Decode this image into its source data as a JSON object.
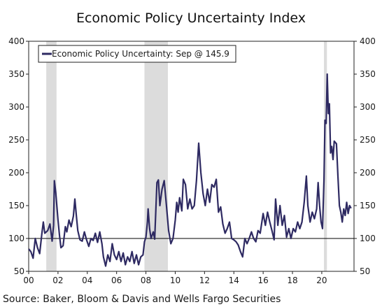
{
  "chart_data": {
    "type": "line",
    "title": "Economic Policy Uncertainty Index",
    "source": "Source: Baker, Bloom & Davis and Wells Fargo Securities",
    "ylim": [
      50,
      400
    ],
    "yticks": [
      50,
      100,
      150,
      200,
      250,
      300,
      350,
      400
    ],
    "xlim": [
      2000,
      2022.2
    ],
    "xticks": [
      {
        "value": 2000,
        "label": "00"
      },
      {
        "value": 2002,
        "label": "02"
      },
      {
        "value": 2004,
        "label": "04"
      },
      {
        "value": 2006,
        "label": "06"
      },
      {
        "value": 2008,
        "label": "08"
      },
      {
        "value": 2010,
        "label": "10"
      },
      {
        "value": 2012,
        "label": "12"
      },
      {
        "value": 2014,
        "label": "14"
      },
      {
        "value": 2016,
        "label": "16"
      },
      {
        "value": 2018,
        "label": "18"
      },
      {
        "value": 2020,
        "label": "20"
      }
    ],
    "grid": false,
    "legend_position": "top-left",
    "reference_line": 100,
    "recessions": [
      [
        2001.2,
        2001.9
      ],
      [
        2007.9,
        2009.5
      ],
      [
        2020.15,
        2020.35
      ]
    ],
    "series": [
      {
        "name": "Economic Policy Uncertainty: Sep @ 145.9",
        "color": "#2e2a62",
        "points": [
          [
            2000.0,
            84
          ],
          [
            2000.15,
            80
          ],
          [
            2000.3,
            70
          ],
          [
            2000.45,
            100
          ],
          [
            2000.6,
            86
          ],
          [
            2000.75,
            77
          ],
          [
            2000.9,
            108
          ],
          [
            2001.0,
            125
          ],
          [
            2001.1,
            108
          ],
          [
            2001.3,
            112
          ],
          [
            2001.45,
            122
          ],
          [
            2001.6,
            96
          ],
          [
            2001.7,
            120
          ],
          [
            2001.75,
            188
          ],
          [
            2001.85,
            170
          ],
          [
            2002.0,
            128
          ],
          [
            2002.1,
            105
          ],
          [
            2002.2,
            86
          ],
          [
            2002.35,
            89
          ],
          [
            2002.5,
            118
          ],
          [
            2002.6,
            110
          ],
          [
            2002.75,
            128
          ],
          [
            2002.9,
            118
          ],
          [
            2003.05,
            134
          ],
          [
            2003.15,
            160
          ],
          [
            2003.25,
            135
          ],
          [
            2003.35,
            112
          ],
          [
            2003.5,
            98
          ],
          [
            2003.65,
            96
          ],
          [
            2003.8,
            110
          ],
          [
            2003.95,
            98
          ],
          [
            2004.1,
            88
          ],
          [
            2004.25,
            100
          ],
          [
            2004.4,
            97
          ],
          [
            2004.55,
            108
          ],
          [
            2004.7,
            94
          ],
          [
            2004.85,
            110
          ],
          [
            2005.0,
            92
          ],
          [
            2005.1,
            72
          ],
          [
            2005.25,
            58
          ],
          [
            2005.4,
            75
          ],
          [
            2005.55,
            65
          ],
          [
            2005.7,
            92
          ],
          [
            2005.85,
            75
          ],
          [
            2006.0,
            68
          ],
          [
            2006.15,
            80
          ],
          [
            2006.3,
            65
          ],
          [
            2006.45,
            78
          ],
          [
            2006.6,
            60
          ],
          [
            2006.75,
            72
          ],
          [
            2006.9,
            65
          ],
          [
            2007.05,
            80
          ],
          [
            2007.2,
            62
          ],
          [
            2007.35,
            75
          ],
          [
            2007.5,
            60
          ],
          [
            2007.65,
            72
          ],
          [
            2007.8,
            75
          ],
          [
            2007.9,
            95
          ],
          [
            2008.0,
            102
          ],
          [
            2008.1,
            125
          ],
          [
            2008.15,
            145
          ],
          [
            2008.25,
            115
          ],
          [
            2008.35,
            100
          ],
          [
            2008.5,
            110
          ],
          [
            2008.6,
            99
          ],
          [
            2008.75,
            185
          ],
          [
            2008.85,
            189
          ],
          [
            2008.95,
            150
          ],
          [
            2009.1,
            175
          ],
          [
            2009.25,
            188
          ],
          [
            2009.4,
            150
          ],
          [
            2009.55,
            112
          ],
          [
            2009.7,
            92
          ],
          [
            2009.85,
            100
          ],
          [
            2010.0,
            128
          ],
          [
            2010.1,
            155
          ],
          [
            2010.2,
            140
          ],
          [
            2010.3,
            162
          ],
          [
            2010.45,
            142
          ],
          [
            2010.55,
            190
          ],
          [
            2010.7,
            182
          ],
          [
            2010.85,
            145
          ],
          [
            2011.0,
            160
          ],
          [
            2011.15,
            145
          ],
          [
            2011.3,
            150
          ],
          [
            2011.45,
            188
          ],
          [
            2011.6,
            245
          ],
          [
            2011.75,
            200
          ],
          [
            2011.9,
            168
          ],
          [
            2012.05,
            150
          ],
          [
            2012.2,
            175
          ],
          [
            2012.35,
            155
          ],
          [
            2012.5,
            182
          ],
          [
            2012.65,
            178
          ],
          [
            2012.8,
            190
          ],
          [
            2012.95,
            140
          ],
          [
            2013.1,
            148
          ],
          [
            2013.25,
            122
          ],
          [
            2013.4,
            108
          ],
          [
            2013.55,
            115
          ],
          [
            2013.7,
            125
          ],
          [
            2013.85,
            100
          ],
          [
            2014.0,
            98
          ],
          [
            2014.15,
            95
          ],
          [
            2014.3,
            90
          ],
          [
            2014.45,
            80
          ],
          [
            2014.6,
            72
          ],
          [
            2014.75,
            100
          ],
          [
            2014.9,
            92
          ],
          [
            2015.05,
            100
          ],
          [
            2015.2,
            110
          ],
          [
            2015.35,
            100
          ],
          [
            2015.5,
            95
          ],
          [
            2015.65,
            112
          ],
          [
            2015.8,
            108
          ],
          [
            2016.0,
            138
          ],
          [
            2016.15,
            120
          ],
          [
            2016.3,
            140
          ],
          [
            2016.45,
            125
          ],
          [
            2016.6,
            112
          ],
          [
            2016.75,
            98
          ],
          [
            2016.85,
            160
          ],
          [
            2017.0,
            120
          ],
          [
            2017.15,
            150
          ],
          [
            2017.3,
            120
          ],
          [
            2017.45,
            135
          ],
          [
            2017.6,
            102
          ],
          [
            2017.75,
            115
          ],
          [
            2017.9,
            100
          ],
          [
            2018.05,
            115
          ],
          [
            2018.2,
            110
          ],
          [
            2018.35,
            125
          ],
          [
            2018.5,
            115
          ],
          [
            2018.65,
            125
          ],
          [
            2018.8,
            155
          ],
          [
            2018.95,
            195
          ],
          [
            2019.05,
            150
          ],
          [
            2019.2,
            125
          ],
          [
            2019.35,
            140
          ],
          [
            2019.5,
            130
          ],
          [
            2019.65,
            145
          ],
          [
            2019.75,
            185
          ],
          [
            2019.85,
            150
          ],
          [
            2019.95,
            125
          ],
          [
            2020.05,
            115
          ],
          [
            2020.15,
            190
          ],
          [
            2020.22,
            280
          ],
          [
            2020.3,
            275
          ],
          [
            2020.37,
            350
          ],
          [
            2020.45,
            290
          ],
          [
            2020.52,
            305
          ],
          [
            2020.6,
            230
          ],
          [
            2020.68,
            240
          ],
          [
            2020.77,
            220
          ],
          [
            2020.85,
            248
          ],
          [
            2021.0,
            244
          ],
          [
            2021.1,
            195
          ],
          [
            2021.2,
            150
          ],
          [
            2021.3,
            140
          ],
          [
            2021.4,
            125
          ],
          [
            2021.5,
            145
          ],
          [
            2021.6,
            135
          ],
          [
            2021.7,
            155
          ],
          [
            2021.8,
            138
          ],
          [
            2021.9,
            150
          ],
          [
            2022.0,
            146
          ]
        ]
      }
    ]
  }
}
